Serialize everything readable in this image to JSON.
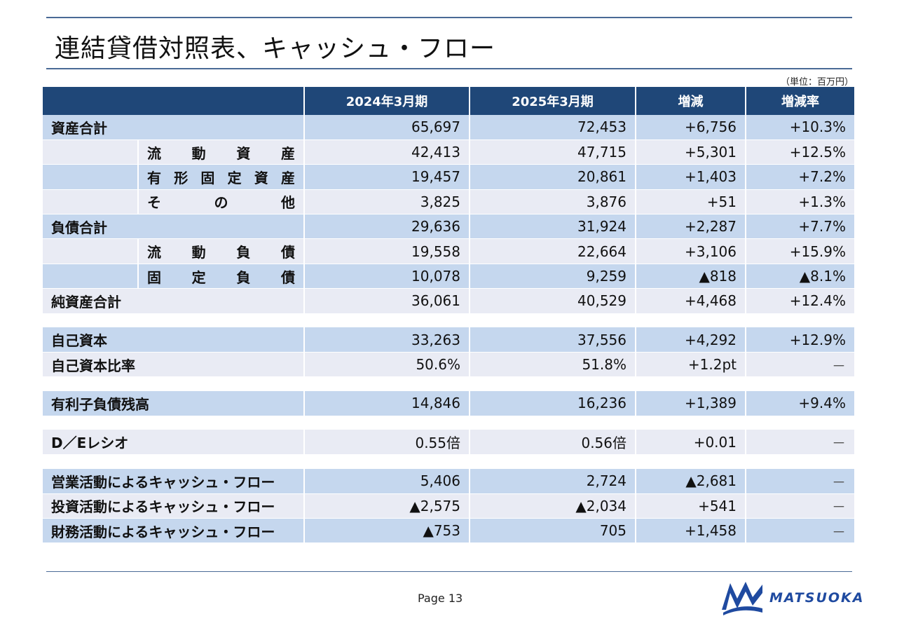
{
  "title": "連結貸借対照表、キャッシュ・フロー",
  "unit": "（単位：百万円）",
  "headers": [
    "",
    "2024年3月期",
    "2025年3月期",
    "増減",
    "増減率"
  ],
  "rows": [
    {
      "label": "資産合計",
      "sub": "",
      "v1": "65,697",
      "v2": "72,453",
      "diff": "+6,756",
      "rate": "+10.3%"
    },
    {
      "label": "",
      "sub": "流動資産",
      "v1": "42,413",
      "v2": "47,715",
      "diff": "+5,301",
      "rate": "+12.5%"
    },
    {
      "label": "",
      "sub": "有形固定資産",
      "v1": "19,457",
      "v2": "20,861",
      "diff": "+1,403",
      "rate": "+7.2%"
    },
    {
      "label": "",
      "sub": "その他",
      "v1": "3,825",
      "v2": "3,876",
      "diff": "+51",
      "rate": "+1.3%"
    },
    {
      "label": "負債合計",
      "sub": "",
      "v1": "29,636",
      "v2": "31,924",
      "diff": "+2,287",
      "rate": "+7.7%"
    },
    {
      "label": "",
      "sub": "流動負債",
      "v1": "19,558",
      "v2": "22,664",
      "diff": "+3,106",
      "rate": "+15.9%"
    },
    {
      "label": "",
      "sub": "固定負債",
      "v1": "10,078",
      "v2": "9,259",
      "diff": "▲818",
      "rate": "▲8.1%"
    },
    {
      "label": "純資産合計",
      "sub": "",
      "v1": "36,061",
      "v2": "40,529",
      "diff": "+4,468",
      "rate": "+12.4%"
    }
  ],
  "equity": [
    {
      "label": "自己資本",
      "v1": "33,263",
      "v2": "37,556",
      "diff": "+4,292",
      "rate": "+12.9%"
    },
    {
      "label": "自己資本比率",
      "v1": "50.6%",
      "v2": "51.8%",
      "diff": "+1.2pt",
      "rate": "－"
    }
  ],
  "debt": {
    "label": "有利子負債残高",
    "v1": "14,846",
    "v2": "16,236",
    "diff": "+1,389",
    "rate": "+9.4%"
  },
  "de": {
    "label": "D／Eレシオ",
    "v1": "0.55倍",
    "v2": "0.56倍",
    "diff": "+0.01",
    "rate": "－"
  },
  "cashflow": [
    {
      "label": "営業活動によるキャッシュ・フロー",
      "v1": "5,406",
      "v2": "2,724",
      "diff": "▲2,681",
      "rate": "－"
    },
    {
      "label": "投資活動によるキャッシュ・フロー",
      "v1": "▲2,575",
      "v2": "▲2,034",
      "diff": "+541",
      "rate": "－"
    },
    {
      "label": "財務活動によるキャッシュ・フロー",
      "v1": "▲753",
      "v2": "705",
      "diff": "+1,458",
      "rate": "－"
    }
  ],
  "page": "Page 13",
  "logo_text": "MATSUOKA",
  "colors": {
    "header": "#1f4778",
    "dark_row": "#c5d7ee",
    "light_row": "#e9ebf4",
    "rule": "#4a6a96",
    "logo": "#1f4aa0"
  }
}
